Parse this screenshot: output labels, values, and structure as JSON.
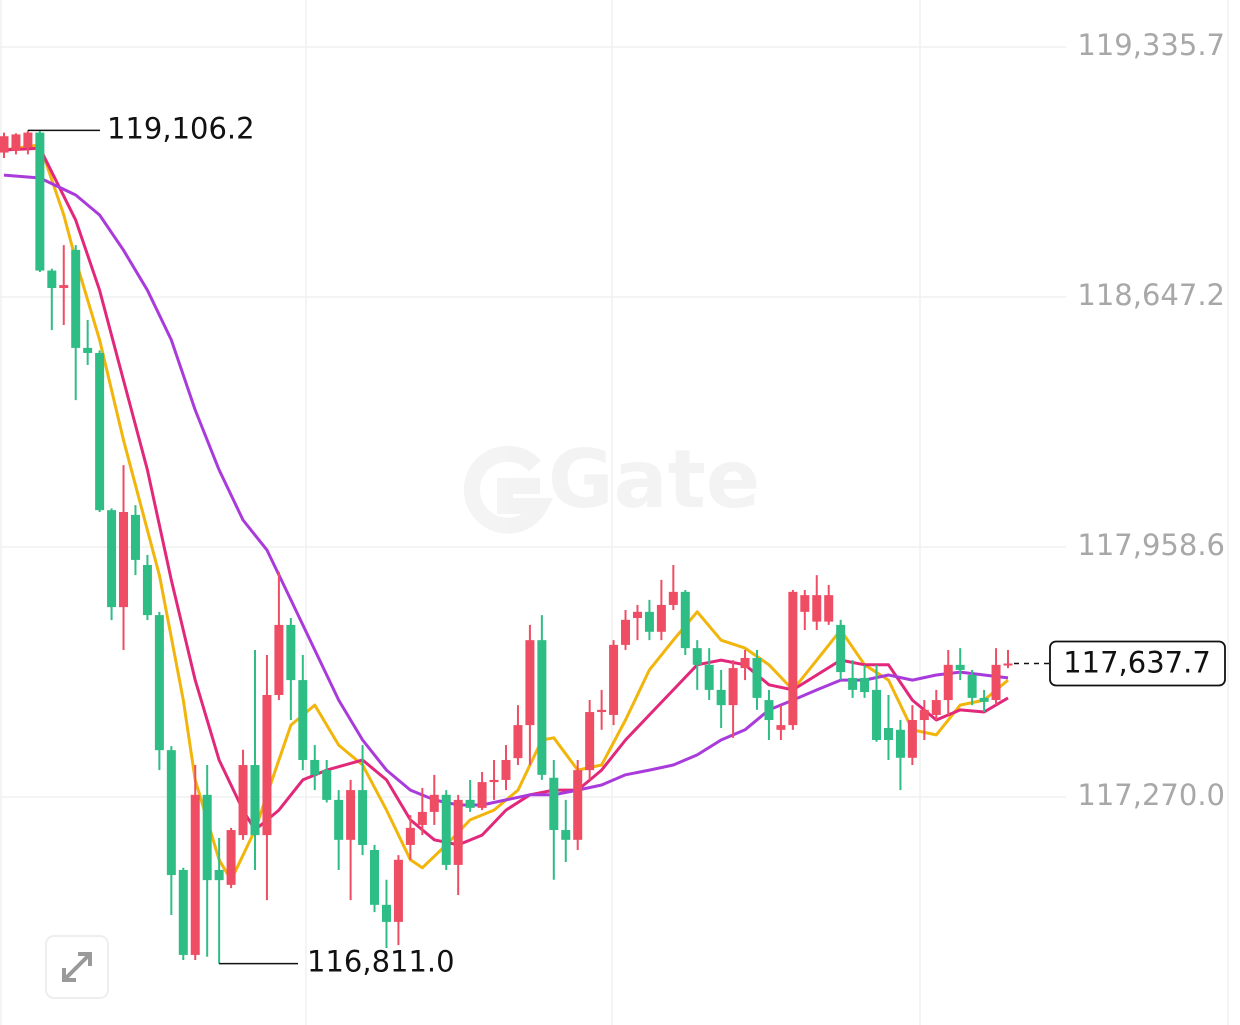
{
  "chart_data": {
    "type": "candlestick",
    "watermark": "Gate",
    "ylim": [
      116642.0,
      119465.2
    ],
    "yticks": [
      {
        "value": 119335.7,
        "label": "119,335.7"
      },
      {
        "value": 118647.2,
        "label": "118,647.2"
      },
      {
        "value": 117958.6,
        "label": "117,958.6"
      },
      {
        "value": 117270.0,
        "label": "117,270.0"
      }
    ],
    "grid": true,
    "up_color": "#ef4d63",
    "down_color": "#2ebd85",
    "open": [
      119045,
      119050,
      119060,
      119100,
      118720,
      118672,
      118777,
      118507,
      118493,
      118060,
      117793,
      118047,
      117909,
      117771,
      117399,
      117069,
      116835,
      117276,
      117069,
      117028,
      117165,
      117358,
      117165,
      117551,
      117744,
      117592,
      117372,
      117344,
      117262,
      117152,
      117289,
      117124,
      116973,
      116926,
      117138,
      117193,
      117229,
      117276,
      117083,
      117262,
      117240,
      117311,
      117317,
      117377,
      117468,
      117702,
      117323,
      117179,
      117152,
      117344,
      117504,
      117496,
      117689,
      117763,
      117780,
      117725,
      117799,
      117835,
      117680,
      117634,
      117565,
      117523,
      117625,
      117653,
      117537,
      117455,
      117468,
      117780,
      117753,
      117753,
      117744,
      117598,
      117598,
      117565,
      117460,
      117455,
      117378,
      117482,
      117496,
      117537,
      117634,
      117606,
      117543,
      117537,
      117634
    ],
    "high": [
      119100,
      119098,
      119106.2,
      119104,
      118725,
      118790,
      118790,
      118584,
      118500,
      118065,
      118184,
      118074,
      117937,
      117780,
      117410,
      117075,
      117358,
      117358,
      117157,
      117185,
      117400,
      117675,
      117661,
      117890,
      117763,
      117661,
      117413,
      117372,
      117289,
      117317,
      117413,
      117138,
      117042,
      117110,
      117220,
      117295,
      117331,
      117289,
      117276,
      117317,
      117339,
      117372,
      117413,
      117523,
      117744,
      117771,
      117372,
      117262,
      117372,
      117537,
      117565,
      117702,
      117785,
      117799,
      117813,
      117868,
      117909,
      117840,
      117702,
      117680,
      117620,
      117647,
      117675,
      117675,
      117565,
      117523,
      117840,
      117840,
      117881,
      117854,
      117758,
      117647,
      117634,
      117634,
      117551,
      117482,
      117523,
      117537,
      117565,
      117675,
      117680,
      117620,
      117565,
      117680,
      117675
    ],
    "low": [
      119030,
      119040,
      119040,
      118716,
      118556,
      118570,
      118363,
      118460,
      118055,
      117757,
      117675,
      117881,
      117757,
      117344,
      116945,
      116821,
      116821,
      116830,
      116811.0,
      117019,
      117152,
      117069,
      116986,
      117537,
      117482,
      117344,
      117289,
      117255,
      117069,
      116986,
      117110,
      116953,
      116854,
      116862,
      117097,
      117165,
      117193,
      117069,
      117000,
      117229,
      117234,
      117262,
      117289,
      117358,
      117358,
      117317,
      117042,
      117091,
      117124,
      117317,
      117455,
      117468,
      117675,
      117702,
      117702,
      117702,
      117785,
      117661,
      117565,
      117537,
      117460,
      117433,
      117592,
      117510,
      117427,
      117427,
      117455,
      117730,
      117730,
      117744,
      117592,
      117543,
      117543,
      117422,
      117372,
      117289,
      117358,
      117427,
      117482,
      117496,
      117592,
      117523,
      117504,
      117523,
      117625
    ],
    "close": [
      119090,
      119095,
      119100,
      118720,
      118672,
      118680,
      118507,
      118493,
      118060,
      117793,
      118055,
      117923,
      117771,
      117399,
      117055,
      116835,
      117276,
      117041,
      117041,
      117179,
      117358,
      117165,
      117551,
      117744,
      117592,
      117372,
      117331,
      117262,
      117152,
      117289,
      117138,
      116973,
      116926,
      117097,
      117185,
      117229,
      117276,
      117083,
      117262,
      117240,
      117311,
      117317,
      117372,
      117468,
      117702,
      117331,
      117179,
      117152,
      117344,
      117504,
      117510,
      117689,
      117758,
      117780,
      117725,
      117799,
      117835,
      117680,
      117634,
      117565,
      117523,
      117625,
      117653,
      117543,
      117482,
      117468,
      117835,
      117826,
      117826,
      117826,
      117614,
      117565,
      117559,
      117427,
      117427,
      117378,
      117482,
      117510,
      117537,
      117634,
      117620,
      117543,
      117532,
      117634,
      117637.7
    ],
    "lines": [
      {
        "color": "#f2b50c",
        "x": [
          0,
          3,
          5,
          6,
          8,
          10,
          12,
          13,
          15,
          16,
          18,
          19,
          21,
          23,
          24,
          26,
          28,
          30,
          32,
          34,
          35,
          37,
          39,
          41,
          43,
          45,
          46,
          48,
          50,
          52,
          54,
          56,
          58,
          60,
          62,
          64,
          66,
          68,
          70,
          72,
          74,
          76,
          78,
          80,
          82,
          84
        ],
        "values": [
          119052,
          119066,
          118873,
          118749,
          118529,
          118253,
          118005,
          117881,
          117537,
          117317,
          117097,
          117041,
          117179,
          117372,
          117468,
          117523,
          117413,
          117358,
          117234,
          117097,
          117075,
          117138,
          117207,
          117234,
          117289,
          117427,
          117433,
          117344,
          117358,
          117482,
          117620,
          117702,
          117780,
          117702,
          117680,
          117634,
          117565,
          117647,
          117730,
          117634,
          117592,
          117455,
          117441,
          117523,
          117537,
          117592
        ]
      },
      {
        "color": "#e2287a",
        "x": [
          0,
          3,
          6,
          8,
          10,
          12,
          14,
          16,
          18,
          20,
          21,
          23,
          25,
          27,
          30,
          32,
          34,
          36,
          38,
          40,
          42,
          44,
          46,
          48,
          50,
          52,
          54,
          56,
          58,
          60,
          62,
          64,
          66,
          68,
          70,
          72,
          74,
          76,
          78,
          80,
          82,
          84
        ],
        "values": [
          119052,
          119057,
          118859,
          118666,
          118418,
          118171,
          117868,
          117592,
          117372,
          117234,
          117179,
          117234,
          117317,
          117344,
          117372,
          117317,
          117207,
          117152,
          117138,
          117165,
          117234,
          117276,
          117289,
          117289,
          117344,
          117427,
          117496,
          117565,
          117634,
          117647,
          117634,
          117579,
          117565,
          117606,
          117647,
          117634,
          117634,
          117537,
          117482,
          117510,
          117504,
          117543
        ]
      },
      {
        "color": "#a93bdb",
        "x": [
          0,
          3,
          6,
          8,
          10,
          12,
          14,
          16,
          18,
          20,
          22,
          24,
          26,
          28,
          30,
          32,
          34,
          36,
          38,
          40,
          42,
          44,
          46,
          48,
          50,
          52,
          54,
          56,
          58,
          60,
          62,
          64,
          66,
          68,
          70,
          72,
          74,
          76,
          78,
          80,
          82,
          84
        ],
        "values": [
          118983,
          118975,
          118928,
          118873,
          118776,
          118666,
          118529,
          118336,
          118171,
          118033,
          117950,
          117813,
          117675,
          117537,
          117427,
          117344,
          117289,
          117262,
          117248,
          117248,
          117262,
          117276,
          117276,
          117289,
          117303,
          117331,
          117344,
          117358,
          117386,
          117427,
          117455,
          117510,
          117537,
          117565,
          117592,
          117592,
          117606,
          117592,
          117606,
          117614,
          117606,
          117598
        ]
      }
    ],
    "high_label": {
      "value": 119106.2,
      "label": "119,106.2"
    },
    "low_label": {
      "value": 116811.0,
      "label": "116,811.0"
    },
    "last_price": {
      "value": 117637.7,
      "label": "117,637.7"
    }
  }
}
